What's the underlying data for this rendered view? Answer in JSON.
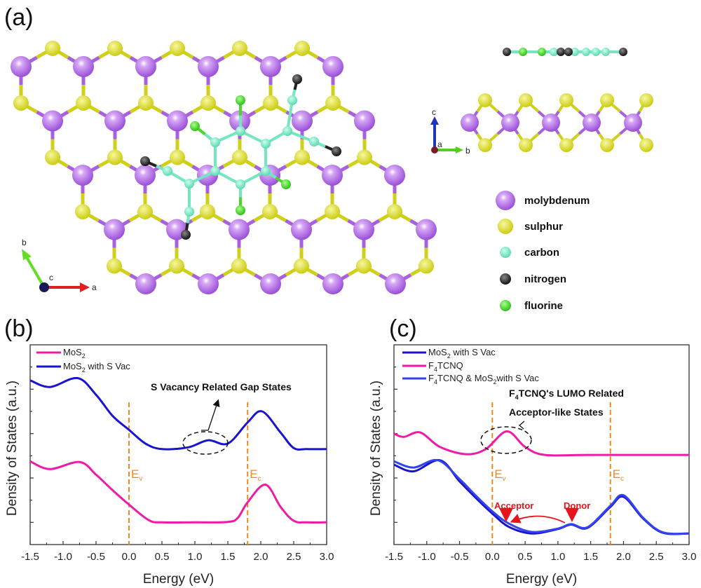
{
  "panel_labels": {
    "a": "(a)",
    "b": "(b)",
    "c": "(c)"
  },
  "structure": {
    "legend": [
      {
        "label": "molybdenum",
        "color": "#a85fe0"
      },
      {
        "label": "sulphur",
        "color": "#d9dc1e"
      },
      {
        "label": "carbon",
        "color": "#74e6c2"
      },
      {
        "label": "nitrogen",
        "color": "#222222"
      },
      {
        "label": "fluorine",
        "color": "#4ad62a"
      }
    ],
    "top_axes": {
      "a": "a",
      "b": "b",
      "c": "c"
    },
    "side_axes": {
      "a": "a",
      "b": "b",
      "c": "c"
    }
  },
  "chart_data": [
    {
      "type": "line",
      "panel": "(b)",
      "xlabel": "Energy (eV)",
      "ylabel": "Density of States (a.u.)",
      "xlim": [
        -1.5,
        3.0
      ],
      "ylim": [
        0,
        9
      ],
      "xticks": [
        "-1.5",
        "-1.0",
        "-0.5",
        "0.0",
        "0.5",
        "1.0",
        "1.5",
        "2.0",
        "2.5",
        "3.0"
      ],
      "legend_position": "top-left",
      "series": [
        {
          "name": "MoS",
          "sub": "2",
          "suffix": "",
          "color": "#f01aa8",
          "x": [
            -1.5,
            -1.2,
            -0.75,
            -0.5,
            -0.25,
            0,
            0.3,
            0.5,
            1.0,
            1.5,
            1.65,
            1.8,
            2.07,
            2.3,
            2.5,
            2.7,
            3.0
          ],
          "y": [
            3.75,
            3.4,
            3.72,
            3.15,
            2.45,
            1.8,
            1.1,
            1.0,
            1.0,
            1.02,
            1.2,
            1.9,
            2.7,
            1.7,
            1.07,
            1.0,
            1.0
          ]
        },
        {
          "name": "MoS",
          "sub": "2",
          "suffix": " with S Vac",
          "color": "#1a14d0",
          "x": [
            -1.5,
            -1.2,
            -0.78,
            -0.5,
            -0.25,
            0,
            0.25,
            0.5,
            0.9,
            1.2,
            1.5,
            1.8,
            2.02,
            2.3,
            2.5,
            2.7,
            3.0
          ],
          "y": [
            7.4,
            7.1,
            7.5,
            6.75,
            5.8,
            5.17,
            4.55,
            4.3,
            4.38,
            4.7,
            4.55,
            5.5,
            6.0,
            5.05,
            4.35,
            4.3,
            4.3
          ]
        }
      ],
      "markers": {
        "Ev": {
          "x": 0.0,
          "main": "E",
          "sub": "v"
        },
        "Ec": {
          "x": 1.8,
          "main": "E",
          "sub": "c"
        }
      },
      "annotations": [
        "S Vacancy Related Gap States"
      ]
    },
    {
      "type": "line",
      "panel": "(c)",
      "xlabel": "Energy (eV)",
      "ylabel": "Density of States (a.u.)",
      "xlim": [
        -1.5,
        3.0
      ],
      "ylim": [
        0,
        9
      ],
      "xticks": [
        "-1.5",
        "-1.0",
        "-0.5",
        "0.0",
        "0.5",
        "1.0",
        "1.5",
        "2.0",
        "2.5",
        "3.0"
      ],
      "legend_position": "top-left",
      "series": [
        {
          "name": "MoS",
          "sub": "2",
          "suffix": " with S Vac",
          "prefix": "",
          "color": "#1a14c8",
          "x": [
            -1.5,
            -1.2,
            -0.8,
            -0.5,
            -0.25,
            0,
            0.25,
            0.6,
            1.0,
            1.2,
            1.45,
            1.8,
            2.0,
            2.3,
            2.6,
            3.0
          ],
          "y": [
            3.6,
            3.3,
            3.8,
            2.85,
            2.1,
            1.4,
            0.8,
            0.5,
            0.7,
            0.9,
            0.75,
            1.7,
            2.15,
            1.17,
            0.53,
            0.5
          ]
        },
        {
          "name": "F",
          "sub": "4",
          "suffix": "TCNQ",
          "prefix": "",
          "color": "#f01aa8",
          "x": [
            -1.5,
            -1.35,
            -1.1,
            -0.8,
            -0.4,
            -0.1,
            0.22,
            0.5,
            0.8,
            1.5,
            3.0
          ],
          "y": [
            5.0,
            4.85,
            5.05,
            4.4,
            4.07,
            4.3,
            5.1,
            4.4,
            4.04,
            4.04,
            4.04
          ]
        },
        {
          "name": "F",
          "sub": "4",
          "suffix": "TCNQ & MoS",
          "sub2": "2",
          "suffix2": "with S Vac",
          "color": "#3344ee",
          "x": [
            -1.5,
            -1.2,
            -0.83,
            -0.5,
            -0.25,
            0,
            0.25,
            0.6,
            1.0,
            1.2,
            1.45,
            1.8,
            2.0,
            2.3,
            2.6,
            3.0
          ],
          "y": [
            3.75,
            3.47,
            3.8,
            2.95,
            2.2,
            1.5,
            0.95,
            0.57,
            0.72,
            0.92,
            0.78,
            1.75,
            2.22,
            1.2,
            0.55,
            0.5
          ]
        }
      ],
      "markers": {
        "Ev": {
          "x": 0.0,
          "main": "E",
          "sub": "v"
        },
        "Ec": {
          "x": 1.8,
          "main": "E",
          "sub": "c"
        }
      },
      "annotations": [
        "F",
        "4",
        "TCNQ's LUMO Related",
        "Acceptor-like States",
        "Acceptor",
        "Donor"
      ]
    }
  ]
}
